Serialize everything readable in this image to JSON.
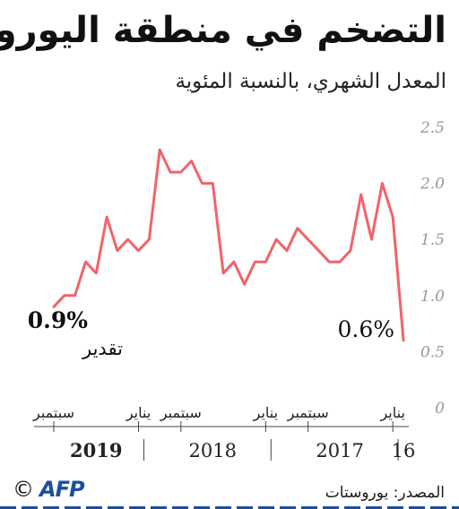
{
  "title": "التضخم في منطقة اليورو",
  "subtitle": "المعدل الشهري، بالنسبة المئوية",
  "source": "المصدر: يوروستات",
  "credit": {
    "copyright": "©",
    "logo_text": "AFP"
  },
  "colors": {
    "line": "#f2636b",
    "axis": "#999999",
    "text": "#222222",
    "logo": "#1c4ea0"
  },
  "chart_data": {
    "type": "line",
    "ylim": [
      0,
      2.5
    ],
    "y_ticks": [
      "0",
      "0.5",
      "1.0",
      "1.5",
      "2.0",
      "2.5"
    ],
    "y_tick_values": [
      0,
      0.5,
      1.0,
      1.5,
      2.0,
      2.5
    ],
    "x_direction": "right-to-left",
    "x_order": "oldest-first",
    "x": [
      "2016-12",
      "2017-01",
      "2017-02",
      "2017-03",
      "2017-04",
      "2017-05",
      "2017-06",
      "2017-07",
      "2017-08",
      "2017-09",
      "2017-10",
      "2017-11",
      "2017-12",
      "2018-01",
      "2018-02",
      "2018-03",
      "2018-04",
      "2018-05",
      "2018-06",
      "2018-07",
      "2018-08",
      "2018-09",
      "2018-10",
      "2018-11",
      "2018-12",
      "2019-01",
      "2019-02",
      "2019-03",
      "2019-04",
      "2019-05",
      "2019-06",
      "2019-07",
      "2019-08",
      "2019-09"
    ],
    "values": [
      0.6,
      1.7,
      2.0,
      1.5,
      1.9,
      1.4,
      1.3,
      1.3,
      1.4,
      1.5,
      1.6,
      1.4,
      1.5,
      1.3,
      1.3,
      1.1,
      1.3,
      1.2,
      2.0,
      2.0,
      2.2,
      2.1,
      2.1,
      2.3,
      1.5,
      1.4,
      1.5,
      1.4,
      1.7,
      1.2,
      1.3,
      1.0,
      1.0,
      0.9
    ],
    "x_labels": [
      {
        "text": "يناير",
        "month": "2017-01"
      },
      {
        "text": "سبتمبر",
        "month": "2017-09"
      },
      {
        "text": "يناير",
        "month": "2018-01"
      },
      {
        "text": "سبتمبر",
        "month": "2018-09"
      },
      {
        "text": "يناير",
        "month": "2019-01"
      },
      {
        "text": "سبتمبر",
        "month": "2019-09"
      }
    ],
    "years": [
      {
        "text": "16",
        "month": "2016-12",
        "bold": false
      },
      {
        "text": "2017",
        "month": "2017-06",
        "bold": false
      },
      {
        "text": "2018",
        "month": "2018-06",
        "bold": false
      },
      {
        "text": "2019",
        "month": "2019-05",
        "bold": true
      }
    ],
    "annotations": [
      {
        "value": "0.6%",
        "bold": false,
        "sub": "",
        "month": "2016-12"
      },
      {
        "value": "0.9%",
        "bold": true,
        "sub": "تقدير",
        "month": "2019-09"
      }
    ],
    "grid": false
  }
}
